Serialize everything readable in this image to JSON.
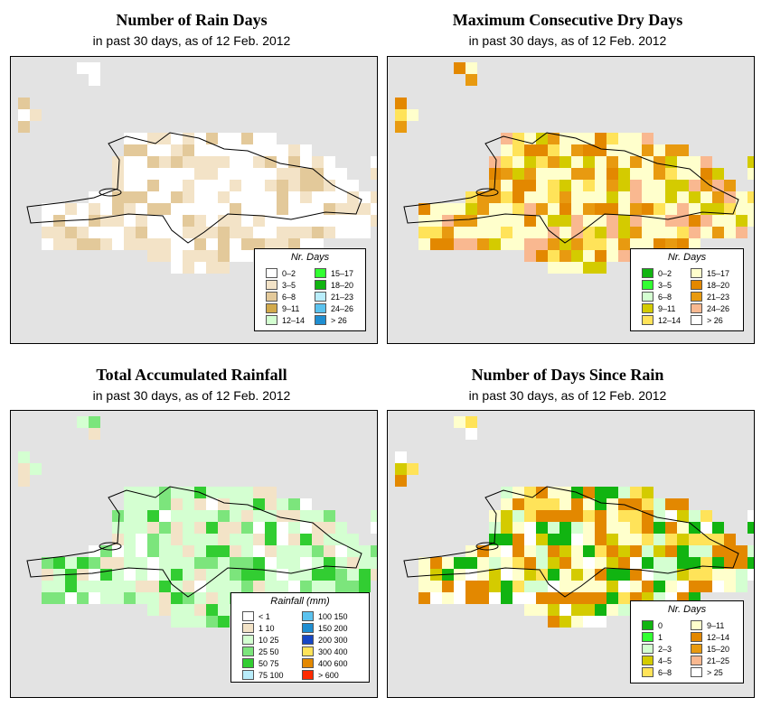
{
  "panels": [
    {
      "title": "Number of Rain Days",
      "subtitle": "in past 30 days, as of  12 Feb. 2012",
      "legend_title": "Nr. Days",
      "legend": [
        {
          "label": "0–2",
          "color": "#ffffff"
        },
        {
          "label": "3–5",
          "color": "#f3e3c7"
        },
        {
          "label": "6–8",
          "color": "#e3c99a"
        },
        {
          "label": "9–11",
          "color": "#d2aa4c"
        },
        {
          "label": "12–14",
          "color": "#d4ffd1"
        },
        {
          "label": "15–17",
          "color": "#32ff32"
        },
        {
          "label": "18–20",
          "color": "#11b411"
        },
        {
          "label": "21–23",
          "color": "#b9edfb"
        },
        {
          "label": "24–26",
          "color": "#5bc2ee"
        },
        {
          "label": "> 26",
          "color": "#1f8ed1"
        }
      ]
    },
    {
      "title": "Maximum Consecutive Dry Days",
      "subtitle": "in past 30 days, as of  12 Feb. 2012",
      "legend_title": "Nr. Days",
      "legend": [
        {
          "label": "0–2",
          "color": "#11b411"
        },
        {
          "label": "3–5",
          "color": "#32ff32"
        },
        {
          "label": "6–8",
          "color": "#d4ffd1"
        },
        {
          "label": "9–11",
          "color": "#d4cb00"
        },
        {
          "label": "12–14",
          "color": "#ffe359"
        },
        {
          "label": "15–17",
          "color": "#ffffcc"
        },
        {
          "label": "18–20",
          "color": "#e38800"
        },
        {
          "label": "21–23",
          "color": "#e89a10"
        },
        {
          "label": "24–26",
          "color": "#f9b890"
        },
        {
          "label": "> 26",
          "color": "#ffffff"
        }
      ]
    },
    {
      "title": "Total Accumulated Rainfall",
      "subtitle": "in past 30 days, as of  12 Feb. 2012",
      "legend_title": "Rainfall (mm)",
      "legend": [
        {
          "label": "< 1",
          "color": "#ffffff"
        },
        {
          "label": "1    10",
          "color": "#f3e3c7"
        },
        {
          "label": "10    25",
          "color": "#d4ffd1"
        },
        {
          "label": "25    50",
          "color": "#7ce57c"
        },
        {
          "label": "50    75",
          "color": "#32cd32"
        },
        {
          "label": "75   100",
          "color": "#b9edfb"
        },
        {
          "label": "100   150",
          "color": "#5bc2ee"
        },
        {
          "label": "150   200",
          "color": "#1f8ed1"
        },
        {
          "label": "200   300",
          "color": "#1747c5"
        },
        {
          "label": "300   400",
          "color": "#ffe359"
        },
        {
          "label": "400   600",
          "color": "#e38800"
        },
        {
          "label": "> 600",
          "color": "#ff2a00"
        }
      ]
    },
    {
      "title": "Number of Days Since Rain",
      "subtitle": "in past 30 days, as of  12 Feb. 2012",
      "legend_title": "Nr. Days",
      "legend": [
        {
          "label": "0",
          "color": "#11b411"
        },
        {
          "label": "1",
          "color": "#32ff32"
        },
        {
          "label": "2–3",
          "color": "#d4ffd1"
        },
        {
          "label": "4–5",
          "color": "#d4cb00"
        },
        {
          "label": "6–8",
          "color": "#ffe359"
        },
        {
          "label": "9–11",
          "color": "#ffffcc"
        },
        {
          "label": "12–14",
          "color": "#e38800"
        },
        {
          "label": "15–20",
          "color": "#e89a10"
        },
        {
          "label": "21–25",
          "color": "#f9b890"
        },
        {
          "label": "> 25",
          "color": "#ffffff"
        }
      ]
    }
  ]
}
